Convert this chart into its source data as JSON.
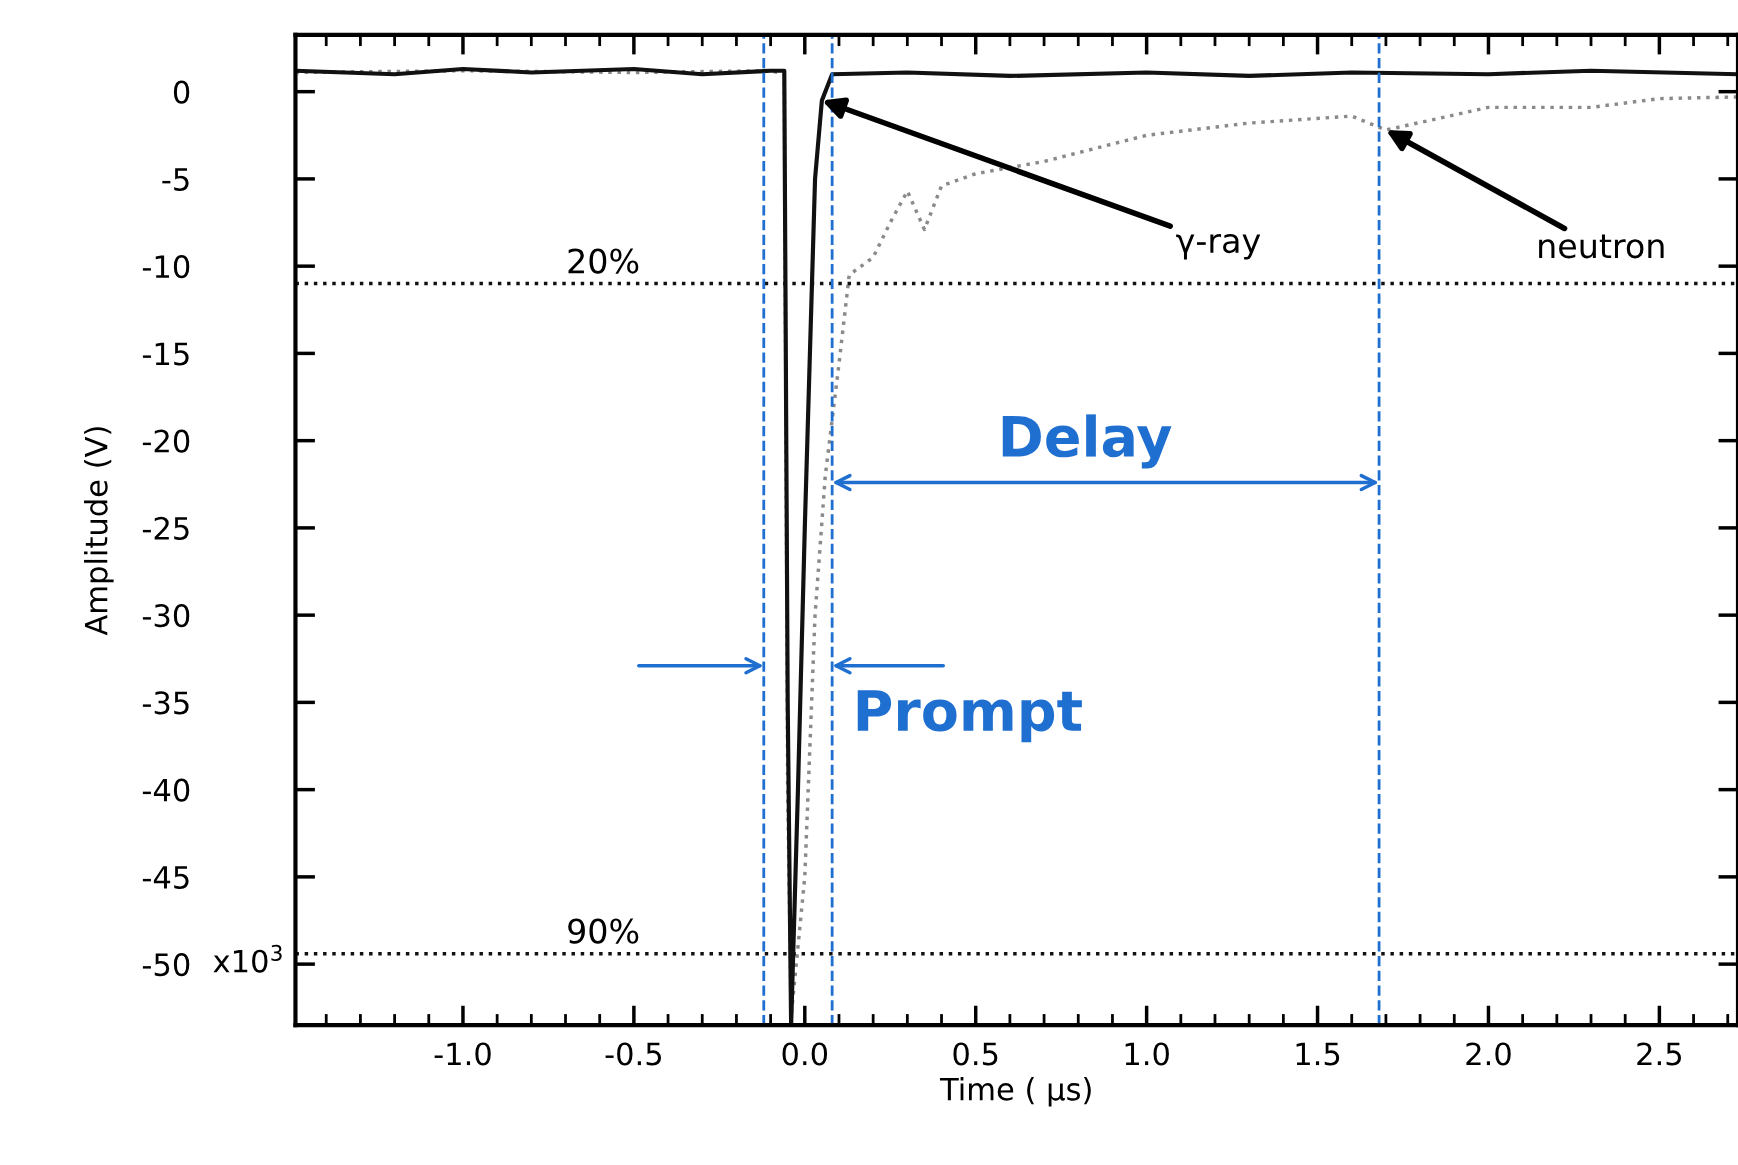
{
  "chart_data": {
    "type": "line",
    "xlabel": "Time ( µs)",
    "ylabel": "Amplitude (V)",
    "xlim": [
      -1.49,
      2.73
    ],
    "ylim": [
      -53.5,
      3.25
    ],
    "xticks": [
      {
        "value": -1.0,
        "label": "-1.0"
      },
      {
        "value": -0.5,
        "label": "-0.5"
      },
      {
        "value": 0.0,
        "label": "0.0"
      },
      {
        "value": 0.5,
        "label": "0.5"
      },
      {
        "value": 1.0,
        "label": "1.0"
      },
      {
        "value": 1.5,
        "label": "1.5"
      },
      {
        "value": 2.0,
        "label": "2.0"
      },
      {
        "value": 2.5,
        "label": "2.5"
      }
    ],
    "yticks": [
      0,
      -5,
      -10,
      -15,
      -20,
      -25,
      -30,
      -35,
      -40,
      -45,
      -50
    ],
    "grid": false,
    "legend": false,
    "marker": "none",
    "series": [
      {
        "color": "#8a8a8a",
        "line_style": "dotted",
        "x": [
          -1.49,
          -1.0,
          -0.5,
          -0.1,
          -0.06,
          -0.05,
          -0.04,
          0.0,
          0.03,
          0.06,
          0.1,
          0.13,
          0.2,
          0.25,
          0.3,
          0.35,
          0.4,
          0.5,
          0.7,
          1.0,
          1.3,
          1.6,
          1.7,
          2.0,
          2.3,
          2.5,
          2.73
        ],
        "values": [
          1.1,
          1.2,
          1.1,
          1.2,
          1.0,
          -40,
          -53,
          -45,
          -30,
          -22,
          -15.6,
          -10.5,
          -9.5,
          -7.5,
          -5.7,
          -7.9,
          -5.4,
          -4.7,
          -4.0,
          -2.5,
          -1.8,
          -1.4,
          -2.2,
          -0.9,
          -0.9,
          -0.4,
          -0.3
        ]
      },
      {
        "color": "#111111",
        "line_style": "solid",
        "x": [
          -1.49,
          -1.2,
          -1.0,
          -0.8,
          -0.5,
          -0.3,
          -0.1,
          -0.06,
          -0.05,
          -0.04,
          -0.02,
          0.0,
          0.03,
          0.05,
          0.08,
          0.3,
          0.6,
          1.0,
          1.3,
          1.6,
          2.0,
          2.3,
          2.73
        ],
        "values": [
          1.2,
          1.0,
          1.3,
          1.1,
          1.3,
          1.0,
          1.2,
          1.2,
          -35,
          -53.5,
          -40,
          -25,
          -5,
          -0.5,
          1.0,
          1.1,
          0.9,
          1.1,
          0.9,
          1.1,
          1.0,
          1.2,
          1.0
        ]
      }
    ],
    "ref_lines": [
      {
        "axis": "y",
        "value": -11,
        "color": "#111111",
        "line_style": "dotted"
      },
      {
        "axis": "y",
        "value": -49.4,
        "color": "#111111",
        "line_style": "dotted"
      },
      {
        "axis": "x",
        "value": -0.12,
        "color": "#1f6fd0",
        "line_style": "dashed"
      },
      {
        "axis": "x",
        "value": 0.08,
        "color": "#1f6fd0",
        "line_style": "dashed"
      },
      {
        "axis": "x",
        "value": 1.68,
        "color": "#1f6fd0",
        "line_style": "dashed"
      }
    ],
    "annotations": [
      {
        "text": "γ-ray",
        "x": 0.05,
        "y": -0.5
      },
      {
        "text": "neutron",
        "x": 1.7,
        "y": -2.2
      },
      "Delay",
      "Prompt",
      {
        "text": "20%",
        "x": -0.59,
        "y": -11
      },
      {
        "text": "90%",
        "x": -0.59,
        "y": -49.4
      },
      "x10$^{3}$"
    ]
  }
}
